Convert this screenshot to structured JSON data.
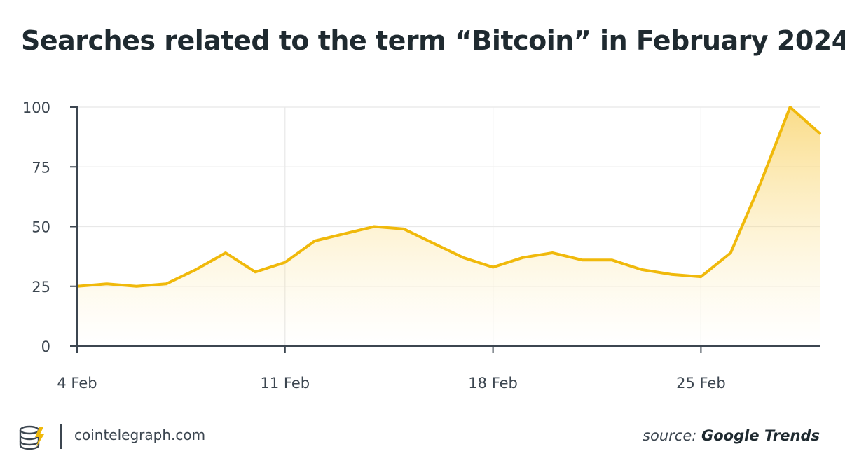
{
  "header": {
    "title": "Searches related to the term “Bitcoin” in February 2024"
  },
  "chart_data": {
    "type": "area",
    "title": "Searches related to the term “Bitcoin” in February 2024",
    "xlabel": "",
    "ylabel": "",
    "x": [
      "4 Feb",
      "5 Feb",
      "6 Feb",
      "7 Feb",
      "8 Feb",
      "9 Feb",
      "10 Feb",
      "11 Feb",
      "12 Feb",
      "13 Feb",
      "14 Feb",
      "15 Feb",
      "16 Feb",
      "17 Feb",
      "18 Feb",
      "19 Feb",
      "20 Feb",
      "21 Feb",
      "22 Feb",
      "23 Feb",
      "24 Feb",
      "25 Feb",
      "26 Feb",
      "27 Feb",
      "28 Feb",
      "29 Feb"
    ],
    "series": [
      {
        "values": [
          25,
          26,
          25,
          26,
          32,
          39,
          31,
          35,
          44,
          47,
          50,
          49,
          43,
          37,
          33,
          37,
          39,
          36,
          36,
          32,
          30,
          29,
          39,
          68,
          100,
          89
        ]
      }
    ],
    "x_ticks": [
      "4 Feb",
      "11 Feb",
      "18 Feb",
      "25 Feb"
    ],
    "y_ticks": [
      0,
      25,
      50,
      75,
      100
    ],
    "ylim": [
      0,
      100
    ],
    "grid": true,
    "colors": {
      "line": "#f0b90b",
      "fill_top": "#f7c948",
      "axis": "#3c4650",
      "grid": "#e8e8e8"
    }
  },
  "footer": {
    "site": "cointelegraph.com",
    "source_prefix": "source:",
    "source_name": "Google Trends",
    "logo_icon": "coin-stack-icon"
  }
}
